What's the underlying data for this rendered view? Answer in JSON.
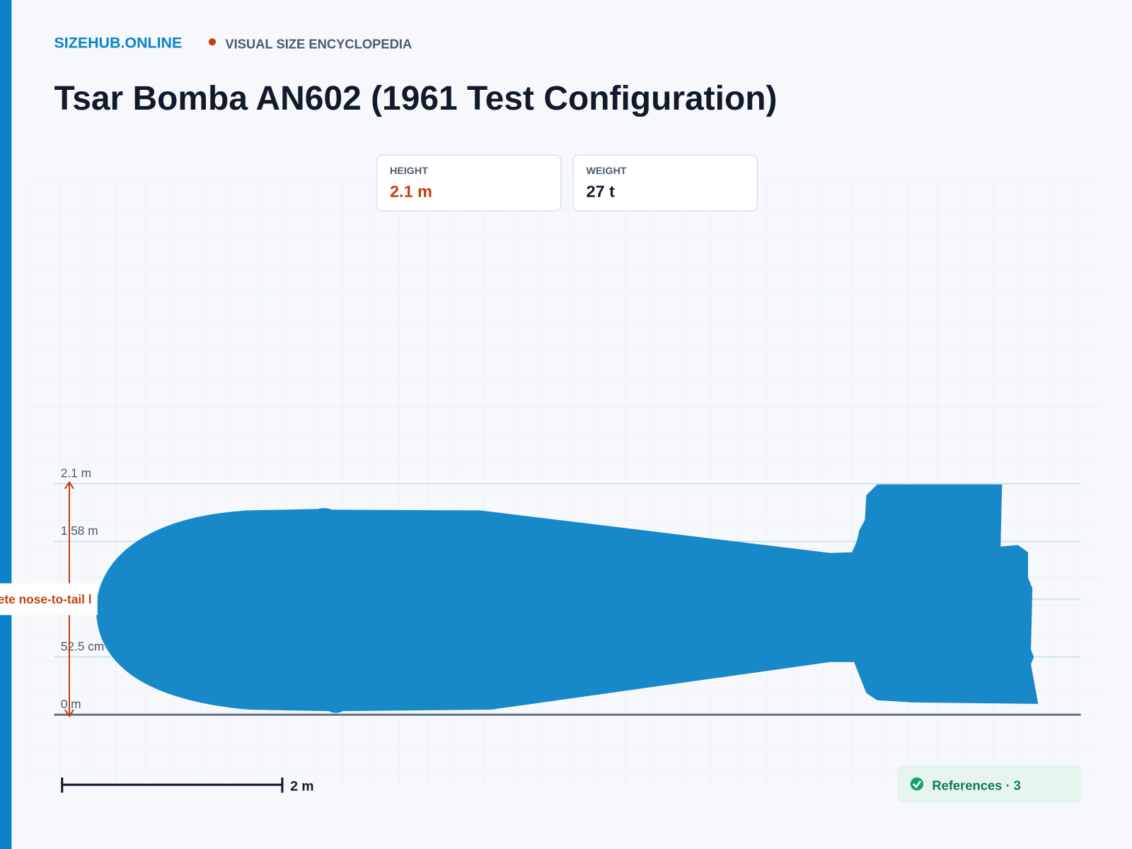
{
  "header": {
    "brand": "SIZEHUB.ONLINE",
    "tagline": "VISUAL SIZE ENCYCLOPEDIA"
  },
  "title": "Tsar Bomba AN602 (1961 Test Configuration)",
  "stats": [
    {
      "label": "HEIGHT",
      "value": "2.1 m"
    },
    {
      "label": "WEIGHT",
      "value": "27 t"
    }
  ],
  "ruler_labels": [
    "2.1 m",
    "1.58 m",
    "52.5 cm",
    "0 m"
  ],
  "annotation": "ete nose-to-tail l",
  "scale_bar": "2 m",
  "references": "References · 3"
}
